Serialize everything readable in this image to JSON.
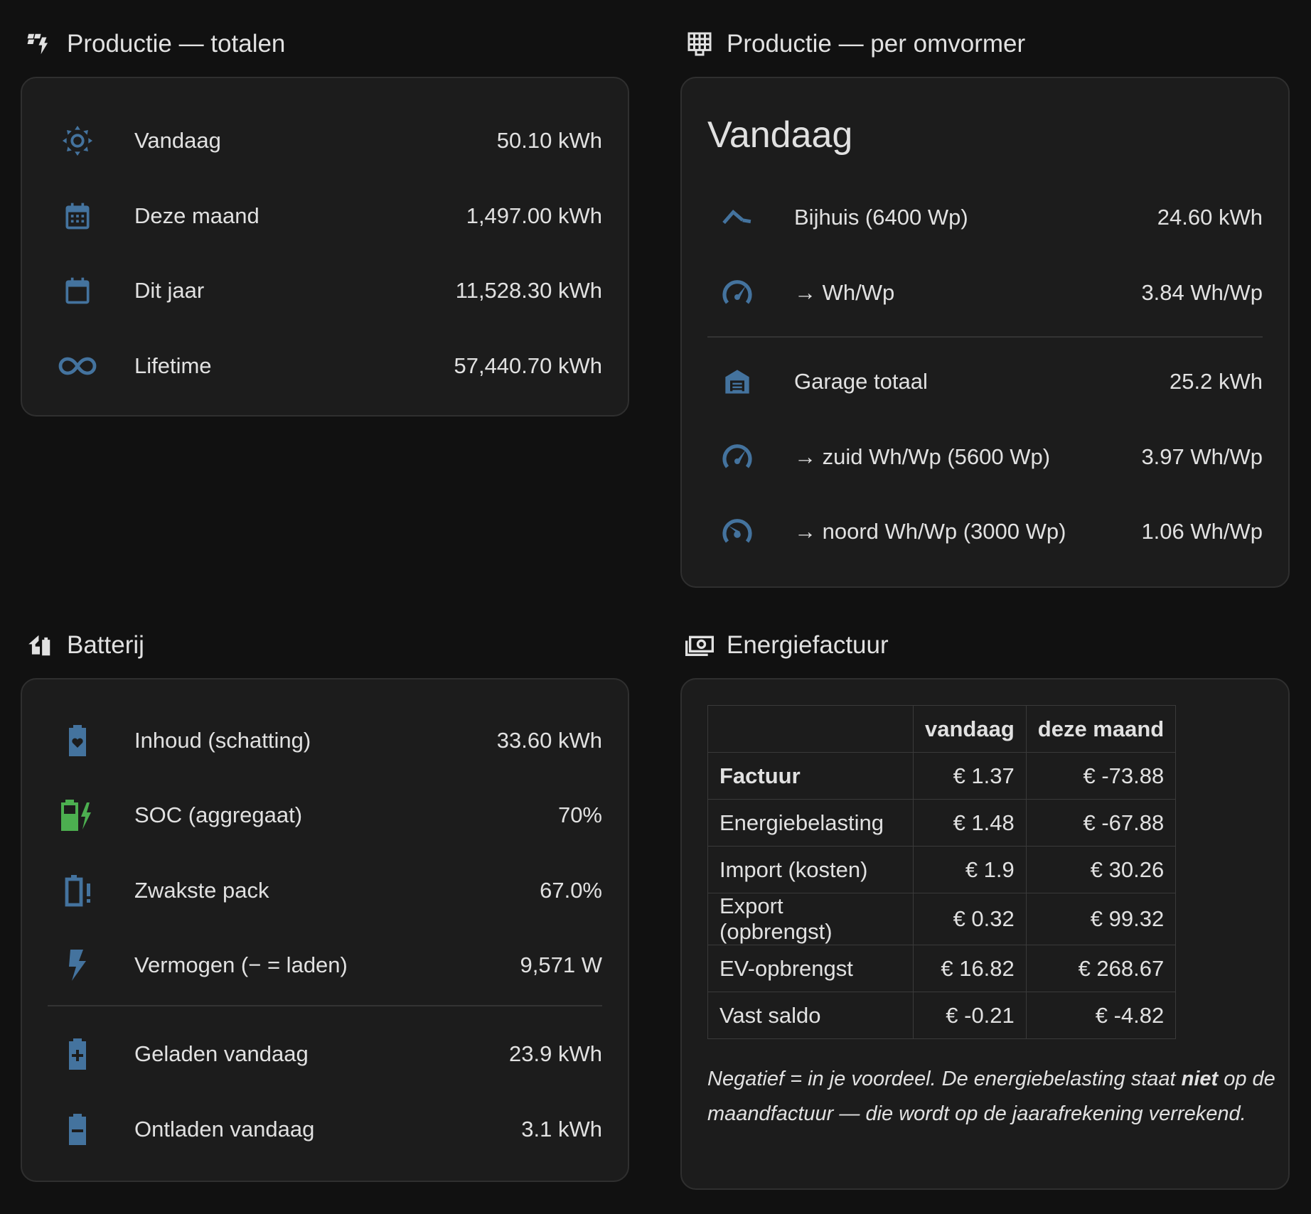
{
  "productie_totalen": {
    "header": "Productie — totalen",
    "header_icon": "solar-power-icon",
    "rows": [
      {
        "icon": "sun-icon",
        "label": "Vandaag",
        "value": "50.10 kWh"
      },
      {
        "icon": "calendar-month-icon",
        "label": "Deze maand",
        "value": "1,497.00 kWh"
      },
      {
        "icon": "calendar-blank-icon",
        "label": "Dit jaar",
        "value": "11,528.30 kWh"
      },
      {
        "icon": "infinity-icon",
        "label": "Lifetime",
        "value": "57,440.70 kWh"
      }
    ]
  },
  "productie_omvormer": {
    "header": "Productie — per omvormer",
    "header_icon": "solar-panel-icon",
    "title": "Vandaag",
    "rows": [
      {
        "icon": "roof-icon",
        "label": "Bijhuis (6400 Wp)",
        "value": "24.60 kWh"
      },
      {
        "icon": "gauge-icon",
        "label": "→ Wh/Wp",
        "value": "3.84 Wh/Wp"
      },
      {
        "icon": "garage-icon",
        "label": "Garage totaal",
        "value": "25.2 kWh"
      },
      {
        "icon": "gauge-icon",
        "label": "→ zuid Wh/Wp (5600 Wp)",
        "value": "3.97 Wh/Wp"
      },
      {
        "icon": "gauge-low-icon",
        "label": "→ noord Wh/Wp (3000 Wp)",
        "value": "1.06 Wh/Wp"
      }
    ]
  },
  "batterij": {
    "header": "Batterij",
    "header_icon": "home-battery-icon",
    "rows": [
      {
        "icon": "battery-heart-icon",
        "label": "Inhoud (schatting)",
        "value": "33.60 kWh"
      },
      {
        "icon": "battery-charging-icon",
        "label": "SOC (aggregaat)",
        "value": "70%"
      },
      {
        "icon": "battery-alert-icon",
        "label": "Zwakste pack",
        "value": "67.0%"
      },
      {
        "icon": "flash-icon",
        "label": "Vermogen (− = laden)",
        "value": "9,571 W"
      },
      {
        "icon": "battery-plus-icon",
        "label": "Geladen vandaag",
        "value": "23.9 kWh"
      },
      {
        "icon": "battery-minus-icon",
        "label": "Ontladen vandaag",
        "value": "3.1 kWh"
      }
    ]
  },
  "energiefactuur": {
    "header": "Energiefactuur",
    "header_icon": "cash-icon",
    "columns": [
      "",
      "vandaag",
      "deze maand"
    ],
    "rows": [
      {
        "label": "Factuur",
        "vandaag": "€ 1.37",
        "maand": "€ -73.88"
      },
      {
        "label": "Energiebelasting",
        "vandaag": "€ 1.48",
        "maand": "€ -67.88"
      },
      {
        "label": "Import (kosten)",
        "vandaag": "€ 1.9",
        "maand": "€ 30.26"
      },
      {
        "label": "Export (opbrengst)",
        "vandaag": "€ 0.32",
        "maand": "€ 99.32"
      },
      {
        "label": "EV-opbrengst",
        "vandaag": "€ 16.82",
        "maand": "€ 268.67"
      },
      {
        "label": "Vast saldo",
        "vandaag": "€ -0.21",
        "maand": "€ -4.82"
      }
    ],
    "note_part1": "Negatief = in je voordeel. De energiebelasting staat ",
    "note_bold": "niet",
    "note_part2": " op de",
    "note_line2": "maandfactuur — die wordt op de jaarafrekening verrekend."
  },
  "colors": {
    "icon_blue": "#44739e",
    "battery_green": "#4caf50",
    "card_bg": "#1c1c1c",
    "page_bg": "#111111"
  }
}
